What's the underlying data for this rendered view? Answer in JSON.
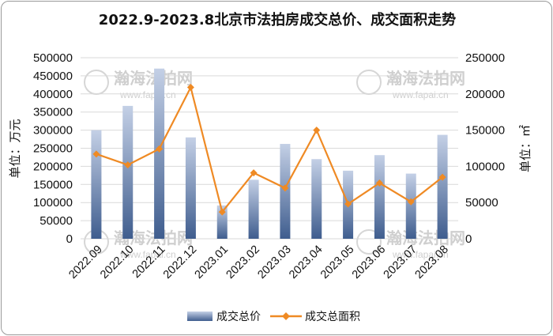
{
  "chart_data": {
    "type": "bar",
    "title": "2022.9-2023.8北京市法拍房成交总价、成交面积走势",
    "categories": [
      "2022.09",
      "2022.10",
      "2022.11",
      "2022.12",
      "2023.01",
      "2023.02",
      "2023.03",
      "2023.04",
      "2023.05",
      "2023.06",
      "2023.07",
      "2023.08"
    ],
    "series": [
      {
        "name": "成交总价",
        "type": "bar",
        "axis": "left",
        "values": [
          300000,
          367000,
          470000,
          280000,
          92000,
          163000,
          262000,
          220000,
          188000,
          231000,
          180000,
          287000
        ]
      },
      {
        "name": "成交总面积",
        "type": "line",
        "axis": "right",
        "values": [
          117000,
          102000,
          124000,
          209000,
          37000,
          91000,
          70000,
          150000,
          48000,
          77000,
          51000,
          85000
        ]
      }
    ],
    "ylabel_left": "单位：万元",
    "ylabel_right": "单位：㎡",
    "ylim_left": [
      0,
      500000
    ],
    "ylim_right": [
      0,
      250000
    ],
    "yticks_left": [
      "0",
      "50000",
      "100000",
      "150000",
      "200000",
      "250000",
      "300000",
      "350000",
      "400000",
      "450000",
      "500000"
    ],
    "yticks_right": [
      "0",
      "50000",
      "100000",
      "150000",
      "200000",
      "250000"
    ],
    "grid": true,
    "legend_position": "bottom",
    "colors": {
      "bar_top": "#c4d0e6",
      "bar_bottom": "#3f5d8e",
      "line": "#ef8a24",
      "grid": "#d9d9d9"
    }
  },
  "watermark": {
    "text": "瀚海法拍网",
    "url": "www.fapai.cn"
  }
}
